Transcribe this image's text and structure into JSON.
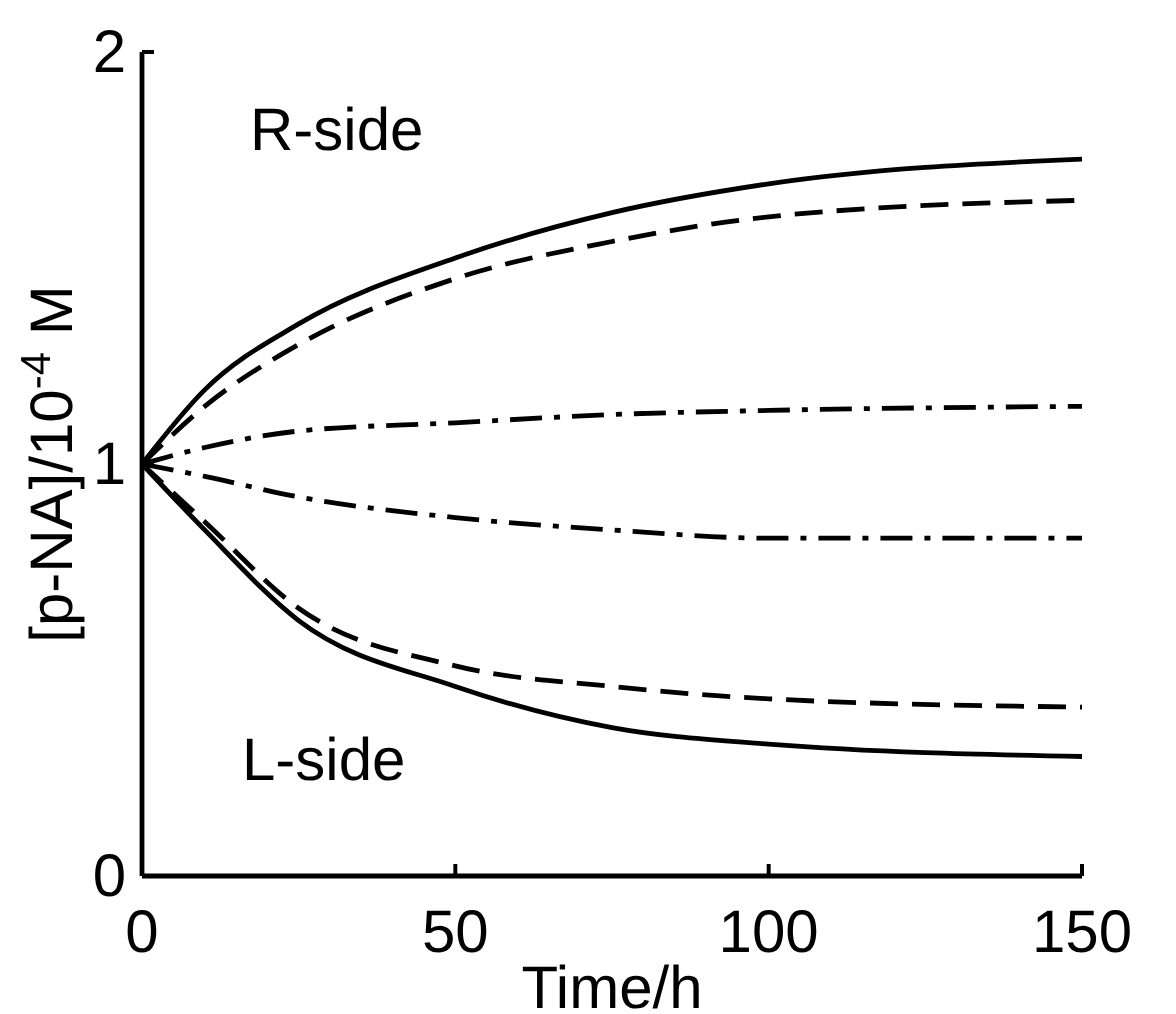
{
  "chart_data": {
    "type": "line",
    "xlabel": "Time/h",
    "ylabel": "[p-NA]/10$^{-4}$ M",
    "x": [
      0,
      10,
      25,
      50,
      75,
      100,
      150
    ],
    "xlim": [
      0,
      150
    ],
    "xticks": [
      0,
      50,
      100,
      150
    ],
    "ylim": [
      0,
      2
    ],
    "yticks": [
      0,
      1,
      2
    ],
    "marker": "none",
    "annotations": [
      "R-side",
      "L-side"
    ],
    "series": [
      {
        "color": "#000000",
        "line_style": "solid",
        "values": [
          1,
          1.18,
          1.34,
          1.5,
          1.61,
          1.68,
          1.74
        ]
      },
      {
        "color": "#000000",
        "line_style": "dashed",
        "values": [
          1,
          1.14,
          1.29,
          1.45,
          1.54,
          1.6,
          1.64
        ]
      },
      {
        "color": "#000000",
        "line_style": "dashdot",
        "values": [
          1,
          1.04,
          1.08,
          1.1,
          1.12,
          1.13,
          1.14
        ]
      },
      {
        "color": "#000000",
        "line_style": "dashdot",
        "values": [
          1,
          0.97,
          0.92,
          0.87,
          0.84,
          0.82,
          0.82
        ]
      },
      {
        "color": "#000000",
        "line_style": "dashed",
        "values": [
          1,
          0.86,
          0.65,
          0.51,
          0.46,
          0.43,
          0.41
        ]
      },
      {
        "color": "#000000",
        "line_style": "solid",
        "values": [
          1,
          0.84,
          0.62,
          0.46,
          0.36,
          0.32,
          0.29
        ]
      }
    ]
  }
}
